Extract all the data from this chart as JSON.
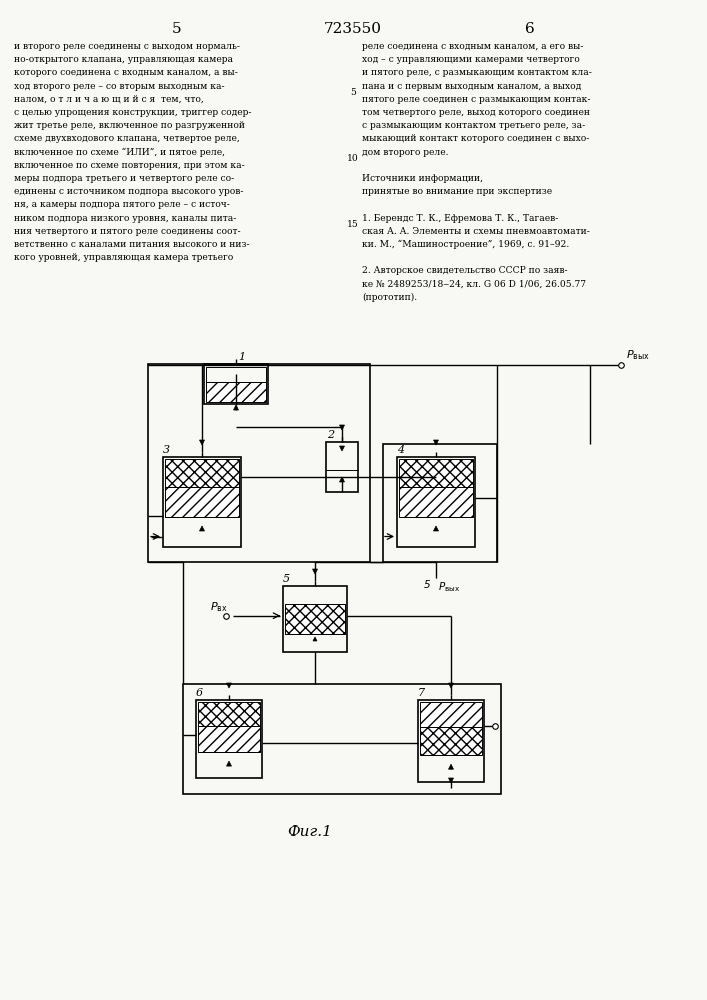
{
  "title_center": "723550",
  "page_left": "5",
  "page_right": "6",
  "fig_caption": "Фиг.1",
  "text_left": [
    "и второго реле соединены с выходом нормаль-",
    "но-открытого клапана, управляющая камера",
    "которого соединена с входным каналом, а вы-",
    "ход второго реле – со вторым выходным ка-",
    "налом, о т л и ч а ю щ и й с я  тем, что,",
    "с целью упрощения конструкции, триггер содер-",
    "жит третье реле, включенное по разгруженной",
    "схеме двухвходового клапана, четвертое реле,",
    "включенное по схеме “ИЛИ”, и пятое реле,",
    "включенное по схеме повторения, при этом ка-",
    "меры подпора третьего и четвертого реле со-",
    "единены с источником подпора высокого уров-",
    "ня, а камеры подпора пятого реле – с источ-",
    "ником подпора низкого уровня, каналы пита-",
    "ния четвертого и пятого реле соединены соот-",
    "ветственно с каналами питания высокого и низ-",
    "кого уровней, управляющая камера третьего"
  ],
  "text_right": [
    "реле соединена с входным каналом, а его вы-",
    "ход – с управляющими камерами четвертого",
    "и пятого реле, с размыкающим контактом кла-",
    "пана и с первым выходным каналом, а выход",
    "пятого реле соединен с размыкающим контак-",
    "том четвертого реле, выход которого соединен",
    "с размыкающим контактом третьего реле, за-",
    "мыкающий контакт которого соединен с выхо-",
    "дом второго реле.",
    "",
    "Источники информации,",
    "принятые во внимание при экспертизе",
    "",
    "1. Берендс Т. К., Ефремова Т. К., Тагаев-",
    "ская А. А. Элементы и схемы пневмоавтомати-",
    "ки. М., “Машиностроение”, 1969, с. 91–92.",
    "",
    "2. Авторское свидетельство СССР по заяв-",
    "ке № 2489253/18‒24, кл. G 06 D 1/06, 26.05.77",
    "(прототип)."
  ],
  "bg_color": "#f8f8f4"
}
